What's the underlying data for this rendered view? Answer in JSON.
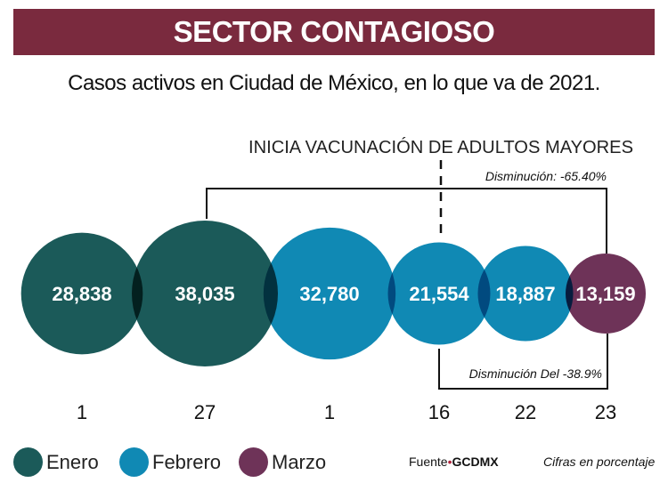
{
  "title": "SECTOR CONTAGIOSO",
  "subtitle": "Casos activos en Ciudad de México, en lo que va de 2021.",
  "chart_data": {
    "type": "bubble",
    "title": "SECTOR CONTAGIOSO",
    "subtitle": "Casos activos en Ciudad de México, en lo que va de 2021.",
    "categories": [
      "1",
      "27",
      "1",
      "16",
      "22",
      "23"
    ],
    "months": [
      "Enero",
      "Enero",
      "Febrero",
      "Febrero",
      "Febrero",
      "Marzo"
    ],
    "values": [
      28838,
      38035,
      32780,
      21554,
      18887,
      13159
    ],
    "value_labels": [
      "28,838",
      "38,035",
      "32,780",
      "21,554",
      "18,887",
      "13,159"
    ],
    "legend": [
      {
        "name": "Enero",
        "color": "#1b5a59"
      },
      {
        "name": "Febrero",
        "color": "#1089b4"
      },
      {
        "name": "Marzo",
        "color": "#6e3358"
      }
    ],
    "annotations": {
      "vaccination": "INICIA VACUNACIÓN DE ADULTOS MAYORES",
      "decrease_total": "Disminución: -65.40%",
      "decrease_since_vaccination": "Disminución Del -38.9%"
    }
  },
  "footer": {
    "source_prefix": "Fuente",
    "source_sep": "•",
    "source_name": "GCDMX",
    "note": "Cifras en porcentaje"
  }
}
